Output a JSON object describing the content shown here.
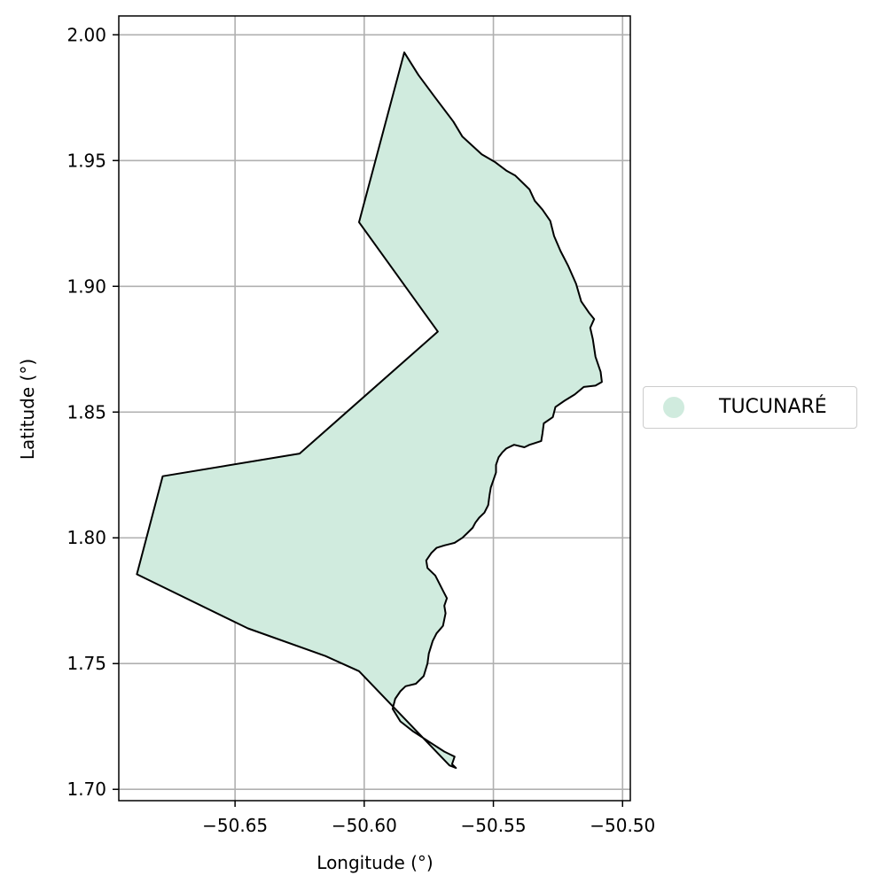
{
  "chart_data": {
    "type": "map",
    "xlabel": "Longitude (°)",
    "ylabel": "Latitude (°)",
    "xlim": [
      -50.695,
      -50.497
    ],
    "ylim": [
      1.6955,
      2.0075
    ],
    "xticks": [
      -50.65,
      -50.6,
      -50.55,
      -50.5
    ],
    "xtick_labels": [
      "−50.65",
      "−50.60",
      "−50.55",
      "−50.50"
    ],
    "yticks": [
      1.7,
      1.75,
      1.8,
      1.85,
      1.9,
      1.95,
      2.0
    ],
    "ytick_labels": [
      "1.70",
      "1.75",
      "1.80",
      "1.85",
      "1.90",
      "1.95",
      "2.00"
    ],
    "grid": true,
    "legend_position": "right",
    "legend": [
      {
        "label": "TUCUNARÉ",
        "color": "#d0ebde"
      }
    ],
    "region": {
      "name": "TUCUNARÉ",
      "fill": "#d0ebde",
      "edge": "#000000",
      "boundary": [
        [
          -50.5845,
          1.993
        ],
        [
          -50.579,
          1.984
        ],
        [
          -50.5725,
          1.975
        ],
        [
          -50.5655,
          1.9655
        ],
        [
          -50.562,
          1.9595
        ],
        [
          -50.5545,
          1.9525
        ],
        [
          -50.5495,
          1.9495
        ],
        [
          -50.545,
          1.946
        ],
        [
          -50.5415,
          1.944
        ],
        [
          -50.539,
          1.9415
        ],
        [
          -50.536,
          1.9385
        ],
        [
          -50.534,
          1.934
        ],
        [
          -50.531,
          1.9305
        ],
        [
          -50.528,
          1.926
        ],
        [
          -50.5265,
          1.92
        ],
        [
          -50.524,
          1.914
        ],
        [
          -50.521,
          1.908
        ],
        [
          -50.518,
          1.901
        ],
        [
          -50.516,
          1.894
        ],
        [
          -50.513,
          1.8895
        ],
        [
          -50.511,
          1.887
        ],
        [
          -50.5125,
          1.8835
        ],
        [
          -50.5115,
          1.879
        ],
        [
          -50.5105,
          1.872
        ],
        [
          -50.5085,
          1.866
        ],
        [
          -50.508,
          1.862
        ],
        [
          -50.5105,
          1.8605
        ],
        [
          -50.515,
          1.86
        ],
        [
          -50.5185,
          1.857
        ],
        [
          -50.5225,
          1.8545
        ],
        [
          -50.526,
          1.852
        ],
        [
          -50.527,
          1.848
        ],
        [
          -50.5305,
          1.8455
        ],
        [
          -50.531,
          1.8415
        ],
        [
          -50.5315,
          1.8385
        ],
        [
          -50.5345,
          1.8375
        ],
        [
          -50.536,
          1.837
        ],
        [
          -50.538,
          1.836
        ],
        [
          -50.542,
          1.837
        ],
        [
          -50.545,
          1.8355
        ],
        [
          -50.5465,
          1.834
        ],
        [
          -50.548,
          1.832
        ],
        [
          -50.549,
          1.829
        ],
        [
          -50.549,
          1.826
        ],
        [
          -50.55,
          1.823
        ],
        [
          -50.551,
          1.82
        ],
        [
          -50.5515,
          1.817
        ],
        [
          -50.552,
          1.813
        ],
        [
          -50.5535,
          1.81
        ],
        [
          -50.5555,
          1.808
        ],
        [
          -50.557,
          1.806
        ],
        [
          -50.558,
          1.804
        ],
        [
          -50.56,
          1.802
        ],
        [
          -50.562,
          1.8
        ],
        [
          -50.565,
          1.798
        ],
        [
          -50.569,
          1.797
        ],
        [
          -50.572,
          1.796
        ],
        [
          -50.574,
          1.794
        ],
        [
          -50.576,
          1.791
        ],
        [
          -50.5755,
          1.788
        ],
        [
          -50.5725,
          1.785
        ],
        [
          -50.571,
          1.782
        ],
        [
          -50.5695,
          1.779
        ],
        [
          -50.568,
          1.776
        ],
        [
          -50.569,
          1.773
        ],
        [
          -50.5685,
          1.77
        ],
        [
          -50.5695,
          1.765
        ],
        [
          -50.572,
          1.762
        ],
        [
          -50.5735,
          1.759
        ],
        [
          -50.575,
          1.754
        ],
        [
          -50.5755,
          1.75
        ],
        [
          -50.577,
          1.745
        ],
        [
          -50.58,
          1.742
        ],
        [
          -50.584,
          1.741
        ],
        [
          -50.586,
          1.739
        ],
        [
          -50.588,
          1.736
        ],
        [
          -50.589,
          1.732
        ],
        [
          -50.586,
          1.727
        ],
        [
          -50.581,
          1.723
        ],
        [
          -50.575,
          1.719
        ],
        [
          -50.569,
          1.715
        ],
        [
          -50.565,
          1.713
        ],
        [
          -50.566,
          1.71
        ],
        [
          -50.5645,
          1.7085
        ],
        [
          -50.567,
          1.7095
        ],
        [
          -50.602,
          1.747
        ],
        [
          -50.615,
          1.753
        ],
        [
          -50.645,
          1.764
        ],
        [
          -50.688,
          1.7855
        ],
        [
          -50.678,
          1.8245
        ],
        [
          -50.625,
          1.8335
        ],
        [
          -50.5715,
          1.882
        ],
        [
          -50.602,
          1.9255
        ]
      ]
    }
  }
}
